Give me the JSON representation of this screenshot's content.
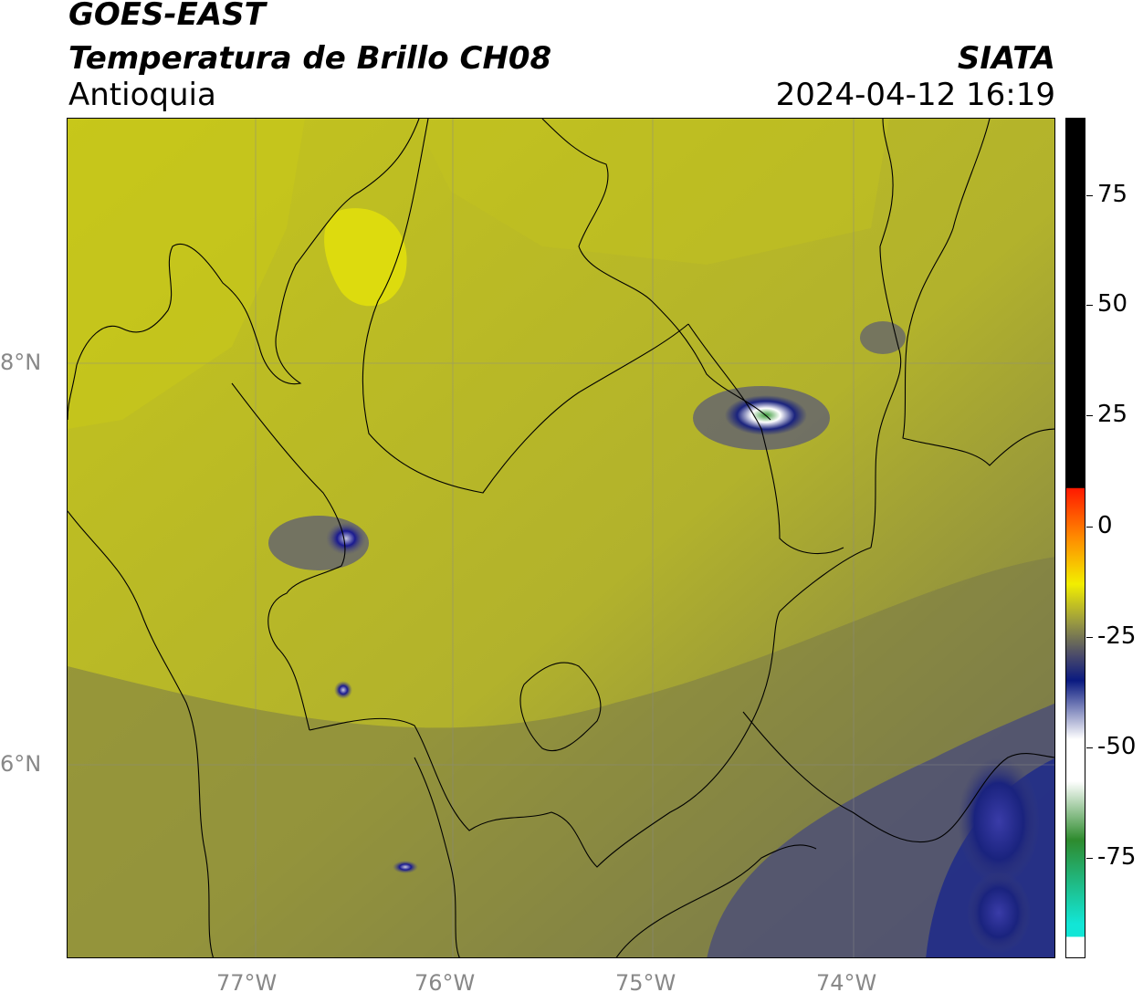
{
  "header": {
    "satellite": "GOES-EAST",
    "product": "Temperatura de Brillo CH08",
    "region": "Antioquia",
    "organization": "SIATA",
    "datetime": "2024-04-12 16:19"
  },
  "axes": {
    "lat_labels": [
      "8°N",
      "6°N"
    ],
    "lon_labels": [
      "77°W",
      "76°W",
      "75°W",
      "74°W"
    ]
  },
  "colorbar": {
    "tick_labels": [
      "75",
      "50",
      "25",
      "0",
      "-25",
      "-50",
      "-75"
    ],
    "colors": {
      "top": "#000000",
      "warm_red": "#ff2a00",
      "orange": "#ff9900",
      "yellow": "#f2ee00",
      "olive": "#8f8f3a",
      "navy": "#001a7a",
      "white": "#ffffff",
      "green": "#2e8b2e",
      "cyan": "#12e6d6"
    }
  },
  "map_colors": {
    "bright": "#e3e10a",
    "yellow_olive": "#c8c81a",
    "olive": "#a8a832",
    "dark_olive": "#7a7a48",
    "grey_blue": "#55557a",
    "navy": "#1a237e",
    "cloud_white": "#f2f2f5",
    "cloud_green": "#3a9a3a"
  }
}
